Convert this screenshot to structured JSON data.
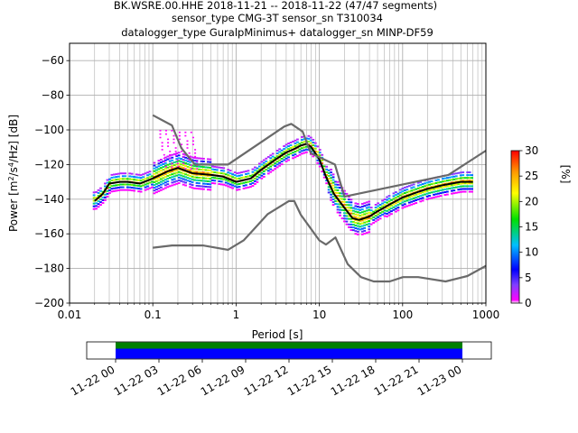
{
  "header": {
    "line1": "BK.WSRE.00.HHE   2018-11-21 -- 2018-11-22  (47/47 segments)",
    "line2": "sensor_type CMG-3T sensor_sn T310034",
    "line3": "datalogger_type GuralpMinimus+ datalogger_sn MINP-DF59"
  },
  "colors": {
    "noise_model": "#6a6a6a",
    "mode_line": "#000000",
    "grid": "#b0b0b0",
    "timeline_top": "#008000",
    "timeline_bottom": "#0000ff"
  },
  "chart_data": [
    {
      "type": "heatmap",
      "title": "BK.WSRE.00.HHE   2018-11-21 -- 2018-11-22  (47/47 segments)",
      "subtitle": "sensor_type CMG-3T sensor_sn T310034 / datalogger_type GuralpMinimus+ datalogger_sn MINP-DF59",
      "xlabel": "Period [s]",
      "ylabel": "Power [m²/s⁴/Hz] [dB]",
      "xscale": "log",
      "xlim": [
        0.01,
        1000
      ],
      "ylim": [
        -200,
        -50
      ],
      "grid": true,
      "xticks": [
        "0.01",
        "0.1",
        "1",
        "10",
        "100",
        "1000"
      ],
      "yticks": [
        "−200",
        "−180",
        "−160",
        "−140",
        "−120",
        "−100",
        "−80",
        "−60"
      ],
      "colorbar": {
        "label": "[%]",
        "range": [
          0,
          30
        ],
        "ticks": [
          "0",
          "5",
          "10",
          "15",
          "20",
          "25",
          "30"
        ],
        "colormap": "pqlx"
      },
      "series": [
        {
          "name": "",
          "role": "psd-mode",
          "x": [
            0.02,
            0.025,
            0.03,
            0.04,
            0.05,
            0.07,
            0.1,
            0.15,
            0.2,
            0.3,
            0.5,
            0.7,
            1,
            1.5,
            2,
            3,
            4,
            5,
            6,
            7,
            8,
            10,
            12,
            15,
            20,
            25,
            30,
            40,
            50,
            70,
            100,
            150,
            200,
            300,
            500,
            700
          ],
          "y": [
            -141,
            -137,
            -131,
            -130,
            -130,
            -131,
            -128,
            -124,
            -122,
            -125,
            -126,
            -127,
            -130,
            -128,
            -123,
            -117,
            -113,
            -111,
            -109,
            -108,
            -110,
            -117,
            -127,
            -137,
            -145,
            -151,
            -152,
            -150,
            -147,
            -143,
            -139,
            -136,
            -134,
            -132,
            -130,
            -130
          ]
        },
        {
          "name": "",
          "role": "noise-model-high",
          "x": [
            0.1,
            0.17,
            0.22,
            0.32,
            0.8,
            3.8,
            4.6,
            6.3,
            7.9,
            15.4,
            20,
            354.8,
            1000
          ],
          "y": [
            -91.5,
            -97.4,
            -110.5,
            -120,
            -120,
            -98,
            -96.5,
            -101,
            -113.5,
            -120,
            -138.5,
            -126,
            -112
          ]
        },
        {
          "name": "",
          "role": "noise-model-low",
          "x": [
            0.1,
            0.17,
            0.4,
            0.8,
            1.24,
            2.4,
            4.3,
            5,
            6,
            10,
            12,
            15.6,
            21.9,
            31.6,
            45,
            70,
            101,
            154,
            328,
            600,
            1000
          ],
          "y": [
            -168,
            -166.7,
            -166.7,
            -169.2,
            -163.7,
            -148.6,
            -141.1,
            -141.1,
            -149,
            -163.8,
            -166.2,
            -162.1,
            -177.5,
            -185,
            -187.5,
            -187.5,
            -185,
            -185,
            -187.5,
            -184.4,
            -178.5
          ]
        }
      ]
    },
    {
      "type": "bar",
      "role": "data-availability-timeline",
      "xlim": [
        "2018-11-21 22:00",
        "2018-11-23 02:00"
      ],
      "xticks": [
        "11-22 00",
        "11-22 03",
        "11-22 06",
        "11-22 09",
        "11-22 12",
        "11-22 15",
        "11-22 18",
        "11-22 21",
        "11-23 00"
      ],
      "coverage": [
        "2018-11-22 00:00",
        "2018-11-23 00:00"
      ]
    }
  ]
}
